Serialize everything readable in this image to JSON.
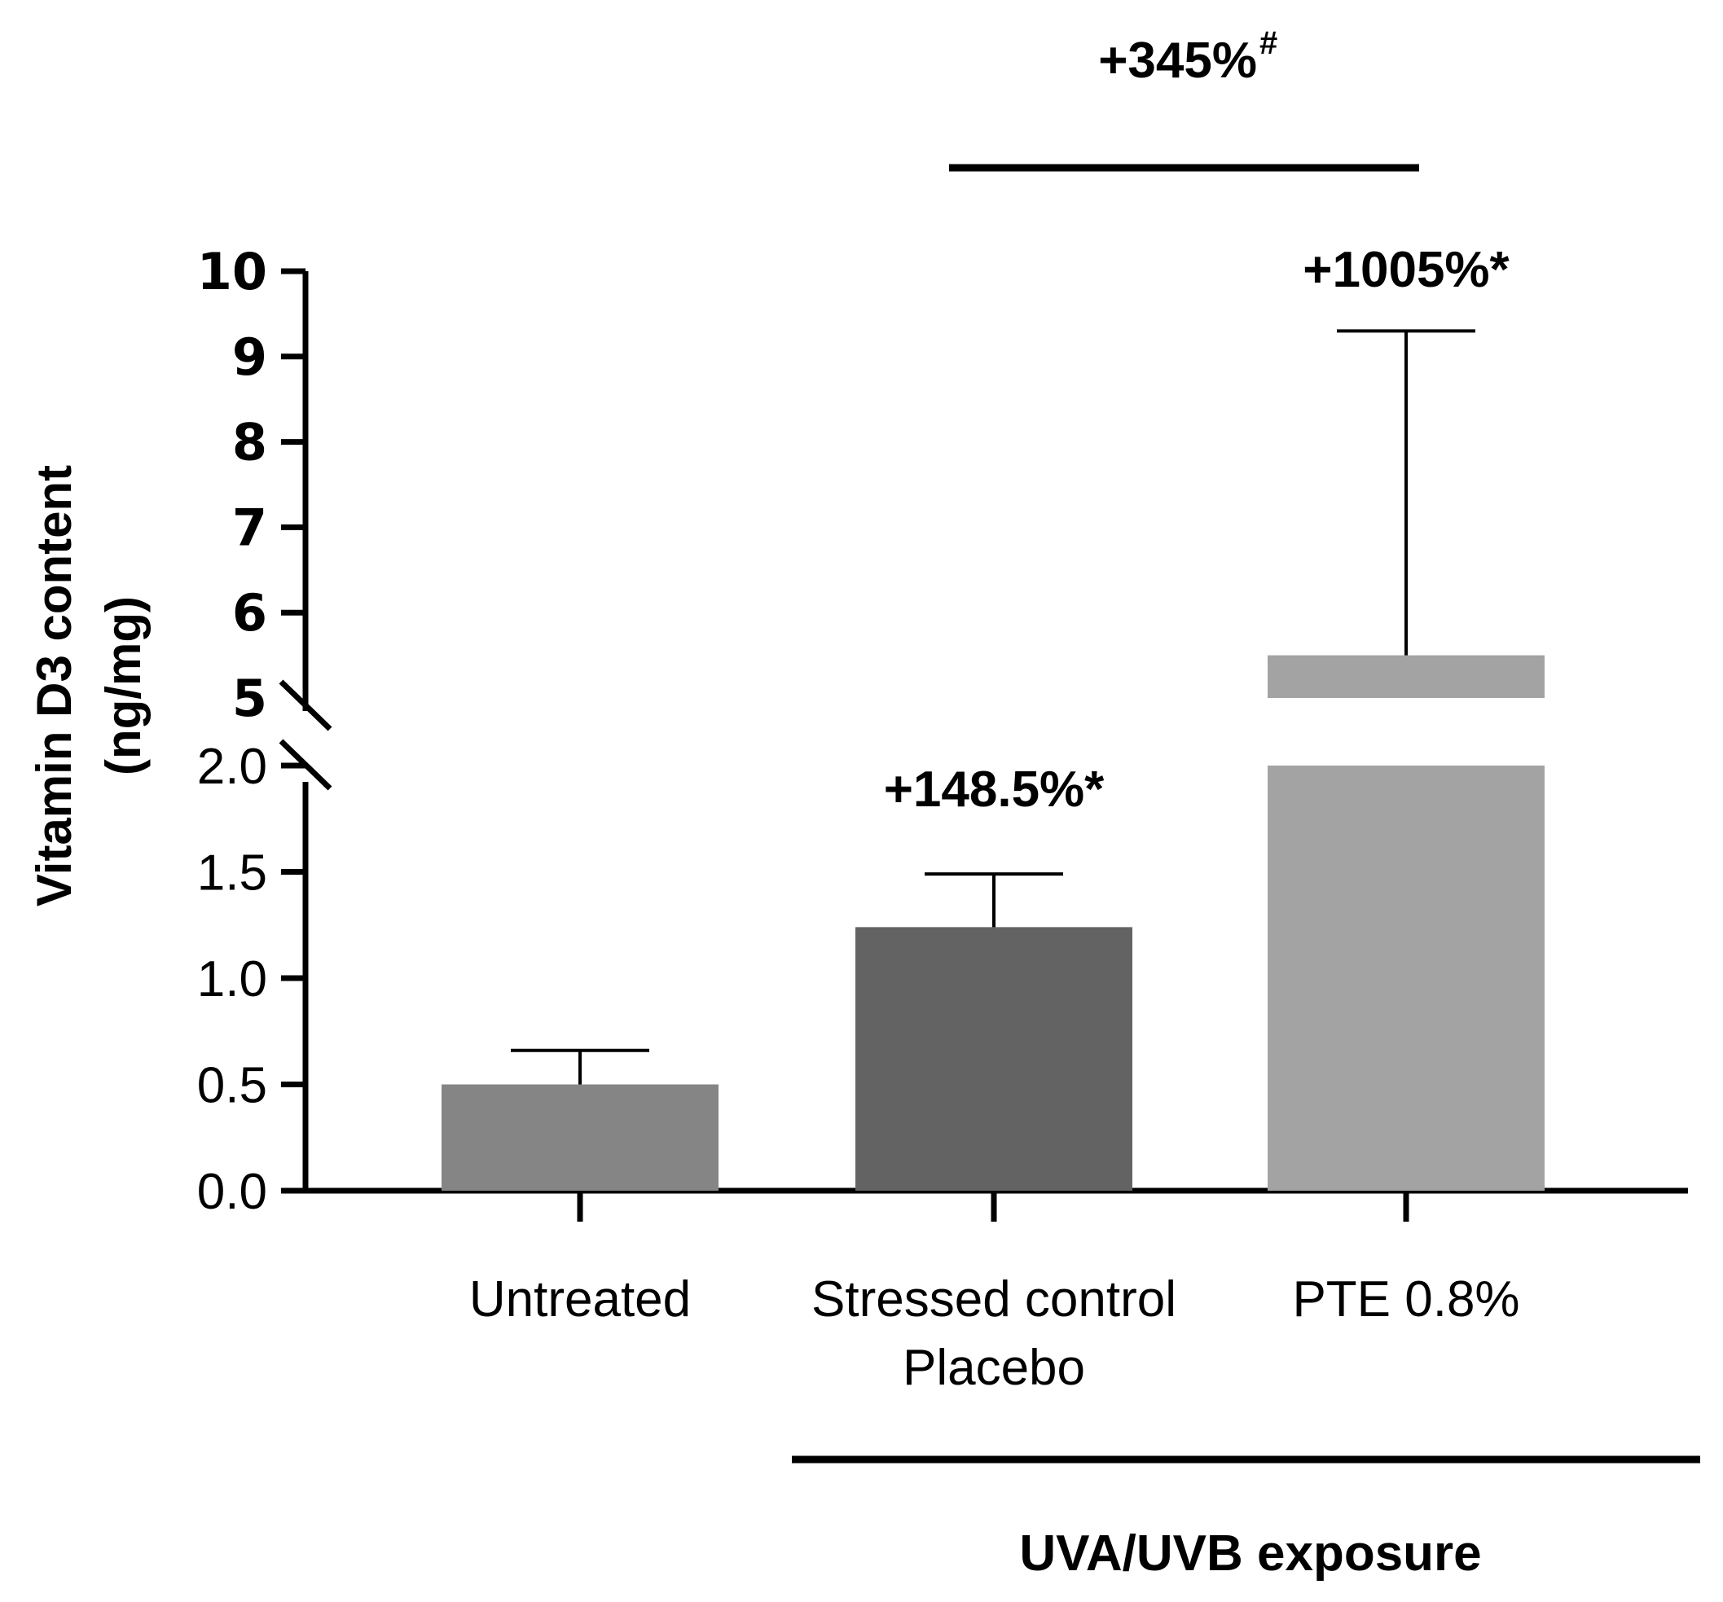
{
  "chart_data": {
    "type": "bar",
    "title": "",
    "xlabel": "",
    "ylabel": [
      "Vitamin  D3 content",
      "(ng/mg)"
    ],
    "categories": [
      [
        "Untreated"
      ],
      [
        "Stressed control",
        "Placebo"
      ],
      [
        "PTE 0.8%"
      ]
    ],
    "values": [
      0.5,
      1.24,
      5.5
    ],
    "error_upper": [
      0.66,
      1.49,
      9.3
    ],
    "bar_colors": [
      "#858585",
      "#636363",
      "#a3a3a3"
    ],
    "y_axis": {
      "broken": true,
      "lower_segment": {
        "ylim": [
          0.0,
          2.0
        ],
        "ticks": [
          "0.0",
          "0.5",
          "1.0",
          "1.5",
          "2.0"
        ]
      },
      "upper_segment": {
        "ylim": [
          5,
          10
        ],
        "ticks": [
          "5",
          "6",
          "7",
          "8",
          "9",
          "10"
        ]
      }
    },
    "annotations": {
      "stressed": "+148.5%*",
      "pte": "+1005%*",
      "bracket_main": "+345%",
      "bracket_sup": "#"
    },
    "group_label": "UVA/UVB exposure"
  }
}
